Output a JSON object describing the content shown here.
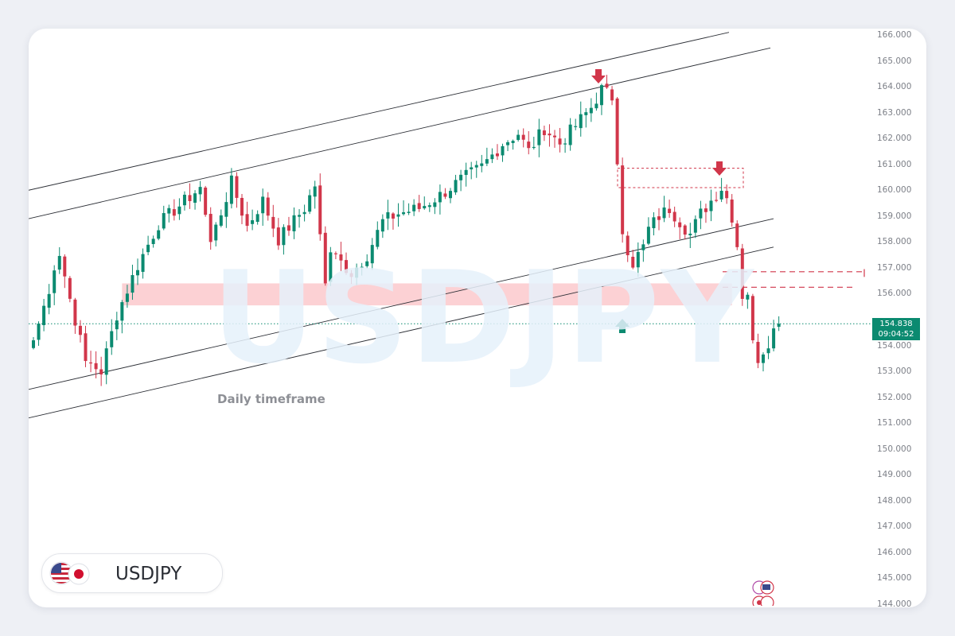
{
  "instrument": {
    "symbol": "USDJPY",
    "flag_left": "us-flag-icon",
    "flag_right": "jp-flag-icon"
  },
  "annotation": {
    "timeframe_label": "Daily timeframe"
  },
  "price_badge": {
    "price": "154.838",
    "countdown": "09:04:52"
  },
  "colors": {
    "bull": "#0b8a70",
    "bear": "#d1364a",
    "zone": "#fbc9cc",
    "watermark": "#e6f1fb"
  },
  "chart_data": {
    "type": "candlestick",
    "title": "",
    "xlabel": "",
    "ylabel": "",
    "ylim": [
      144.0,
      166.0
    ],
    "y_ticks": [
      "166.000",
      "165.000",
      "164.000",
      "163.000",
      "162.000",
      "161.000",
      "160.000",
      "159.000",
      "158.000",
      "157.000",
      "156.000",
      "154.000",
      "153.000",
      "152.000",
      "151.000",
      "150.000",
      "149.000",
      "148.000",
      "147.000",
      "146.000",
      "145.000",
      "144.000"
    ],
    "current_price": 154.838,
    "close_path": [
      [
        0,
        154.2
      ],
      [
        2,
        155.5
      ],
      [
        5,
        157.6
      ],
      [
        7,
        155.8
      ],
      [
        10,
        153.4
      ],
      [
        13,
        153.0
      ],
      [
        16,
        155.2
      ],
      [
        20,
        157.1
      ],
      [
        24,
        158.7
      ],
      [
        28,
        159.4
      ],
      [
        32,
        160.1
      ],
      [
        34,
        158.0
      ],
      [
        38,
        160.3
      ],
      [
        41,
        158.6
      ],
      [
        44,
        159.6
      ],
      [
        47,
        158.1
      ],
      [
        52,
        159.3
      ],
      [
        54,
        160.2
      ],
      [
        56,
        156.4
      ],
      [
        57,
        157.6
      ],
      [
        61,
        156.8
      ],
      [
        64,
        157.5
      ],
      [
        67,
        158.8
      ],
      [
        70,
        159.1
      ],
      [
        74,
        159.3
      ],
      [
        78,
        159.8
      ],
      [
        82,
        160.4
      ],
      [
        86,
        160.9
      ],
      [
        90,
        161.8
      ],
      [
        93,
        162.2
      ],
      [
        95,
        161.5
      ],
      [
        98,
        162.4
      ],
      [
        101,
        161.8
      ],
      [
        104,
        162.5
      ],
      [
        107,
        163.2
      ],
      [
        109,
        163.9
      ],
      [
        111,
        163.6
      ],
      [
        112,
        161.0
      ],
      [
        113,
        158.3
      ],
      [
        115,
        157.2
      ],
      [
        117,
        157.8
      ],
      [
        118,
        158.5
      ],
      [
        120,
        159.0
      ],
      [
        122,
        159.3
      ],
      [
        124,
        158.8
      ],
      [
        126,
        158.3
      ],
      [
        128,
        159.1
      ],
      [
        130,
        159.6
      ],
      [
        132,
        160.1
      ],
      [
        133,
        159.7
      ],
      [
        135,
        157.8
      ],
      [
        136,
        155.8
      ],
      [
        137,
        156.2
      ],
      [
        138,
        154.2
      ],
      [
        139,
        153.4
      ],
      [
        140,
        153.8
      ],
      [
        141,
        154.0
      ],
      [
        142,
        154.5
      ],
      [
        143,
        154.838
      ]
    ],
    "descending_channel_note": "",
    "annotations": [
      {
        "type": "parallel-channel",
        "description": "upper rising channel lines"
      },
      {
        "type": "parallel-channel",
        "description": "lower rising channel lines"
      },
      {
        "type": "zone",
        "from": 155.6,
        "to": 156.4
      },
      {
        "type": "dashed-box",
        "from": 160.1,
        "to": 160.85
      },
      {
        "type": "dashed-box",
        "from": 156.25,
        "to": 156.85
      },
      {
        "type": "arrow-down",
        "at": 164.5
      },
      {
        "type": "arrow-down",
        "at": 160.9
      },
      {
        "type": "arrow-up",
        "at": 154.2
      }
    ]
  }
}
